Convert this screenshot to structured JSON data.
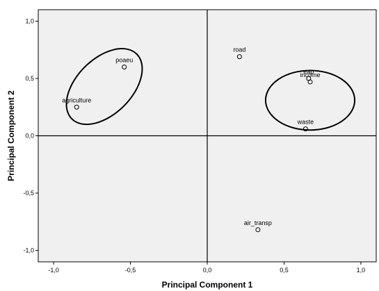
{
  "chart_data": {
    "type": "scatter",
    "title": "",
    "xlabel": "Principal Component 1",
    "ylabel": "Principal Component 2",
    "xlim": [
      -1.1,
      1.1
    ],
    "ylim": [
      -1.1,
      1.1
    ],
    "xticks": [
      -1.0,
      -0.5,
      0.0,
      0.5,
      1.0
    ],
    "yticks": [
      -1.0,
      -0.5,
      0.0,
      0.5,
      1.0
    ],
    "xtick_labels": [
      "-1,0",
      "-0,5",
      "0,0",
      "0,5",
      "1,0"
    ],
    "ytick_labels": [
      "-1,0",
      "-0,5",
      "0,0",
      "0,5",
      "1,0"
    ],
    "grid": false,
    "reference_lines": {
      "x": 0,
      "y": 0
    },
    "background_color": "#f0f0f0",
    "marker": "open-circle",
    "points": [
      {
        "label": "poaeu",
        "x": -0.54,
        "y": 0.6
      },
      {
        "label": "agriculture",
        "x": -0.85,
        "y": 0.25
      },
      {
        "label": "road",
        "x": 0.21,
        "y": 0.69
      },
      {
        "label": "eap",
        "x": 0.66,
        "y": 0.5
      },
      {
        "label": "income",
        "x": 0.67,
        "y": 0.47
      },
      {
        "label": "waste",
        "x": 0.64,
        "y": 0.06
      },
      {
        "label": "air_transp",
        "x": 0.33,
        "y": -0.82
      }
    ],
    "groupings": [
      {
        "members": [
          "poaeu",
          "agriculture"
        ],
        "center": [
          -0.67,
          0.43
        ],
        "rx": 0.18,
        "ry": 0.4,
        "rotation_deg": 45
      },
      {
        "members": [
          "eap",
          "income",
          "waste"
        ],
        "center": [
          0.67,
          0.31
        ],
        "ry": 0.26,
        "rx": 0.29,
        "rotation_deg": 0
      }
    ]
  }
}
